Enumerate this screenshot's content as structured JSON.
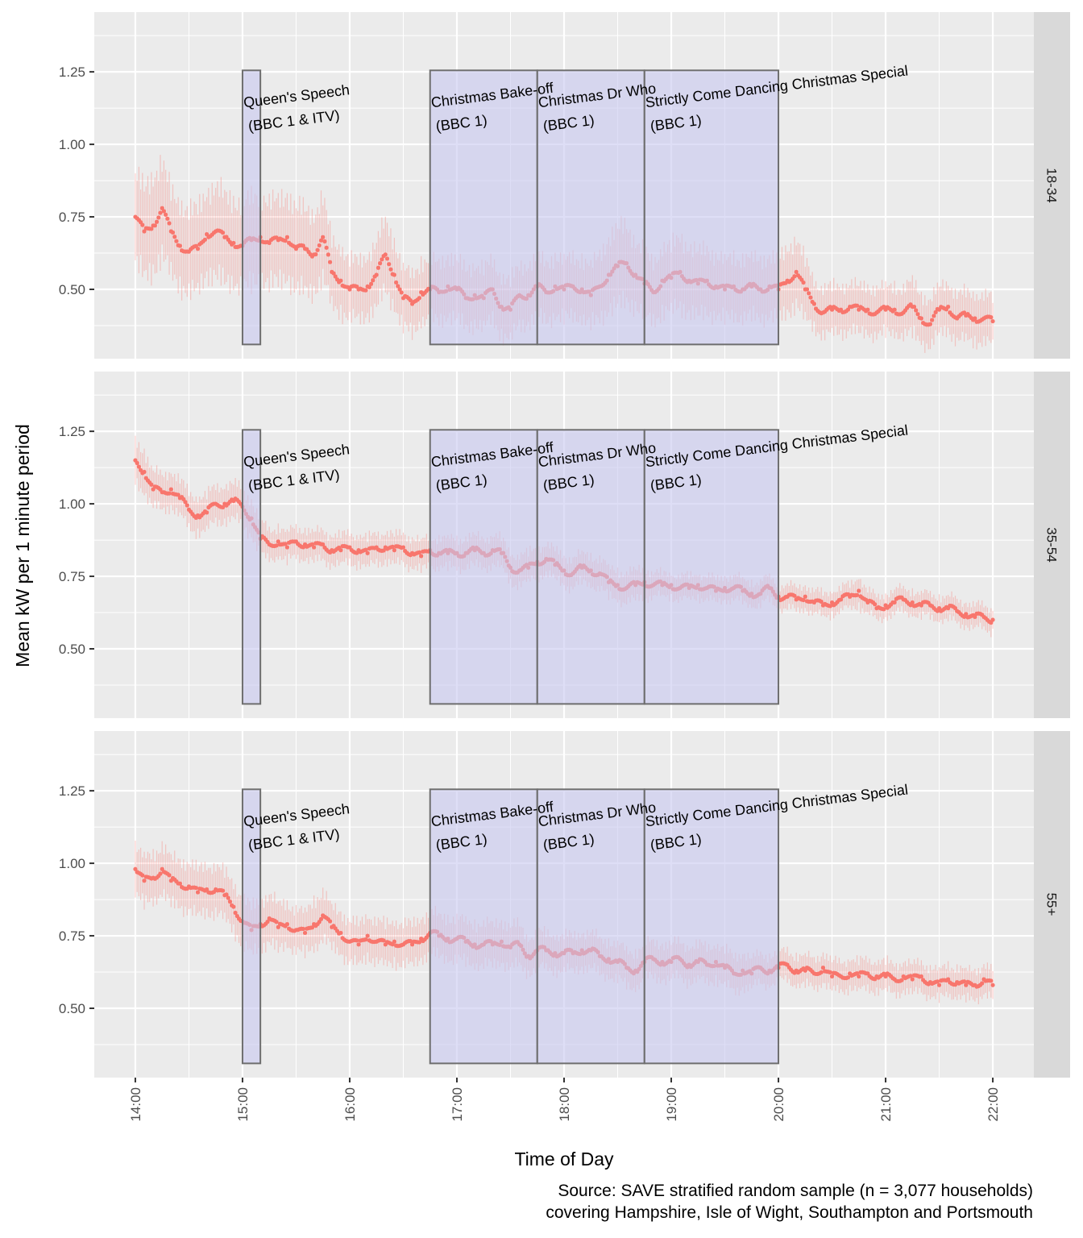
{
  "chart_data": {
    "type": "scatter",
    "subtype": "faceted point + errorbar time series",
    "title": "",
    "xlabel": "Time of Day",
    "ylabel": "Mean kW per 1 minute period",
    "caption_lines": [
      "Source: SAVE stratified random sample (n = 3,077 households)",
      "covering Hampshire, Isle of Wight, Southampton and Portsmouth"
    ],
    "x_unit": "hours",
    "xlim": [
      13.617,
      22.383
    ],
    "ylim": [
      0.261,
      1.456
    ],
    "x_ticks": [
      {
        "value": 14,
        "label": "14:00"
      },
      {
        "value": 15,
        "label": "15:00"
      },
      {
        "value": 16,
        "label": "16:00"
      },
      {
        "value": 17,
        "label": "17:00"
      },
      {
        "value": 18,
        "label": "18:00"
      },
      {
        "value": 19,
        "label": "19:00"
      },
      {
        "value": 20,
        "label": "20:00"
      },
      {
        "value": 21,
        "label": "21:00"
      },
      {
        "value": 22,
        "label": "22:00"
      }
    ],
    "y_ticks": [
      {
        "value": 0.5,
        "label": "0.50"
      },
      {
        "value": 0.75,
        "label": "0.75"
      },
      {
        "value": 1.0,
        "label": "1.00"
      },
      {
        "value": 1.25,
        "label": "1.25"
      }
    ],
    "grid": true,
    "point_color": "#F8766D",
    "errorbar_color": "#F8766D",
    "highlight_fill": "#C8C8F0",
    "highlight_stroke": "#6e6e6e",
    "panel_background": "#EBEBEB",
    "strip_background": "#D9D9D9",
    "x_step_minutes": 5,
    "x_start": 14,
    "annotations": [
      {
        "name": "queens-speech",
        "xmin": 15.0,
        "xmax": 15.1667,
        "ymin": 0.31,
        "ymax": 1.255,
        "lines": [
          "Queen's Speech",
          "(BBC 1 & ITV)"
        ]
      },
      {
        "name": "christmas-bake-off",
        "xmin": 16.75,
        "xmax": 17.75,
        "ymin": 0.31,
        "ymax": 1.255,
        "lines": [
          "Christmas Bake-off",
          "(BBC 1)"
        ]
      },
      {
        "name": "christmas-dr-who",
        "xmin": 17.75,
        "xmax": 18.75,
        "ymin": 0.31,
        "ymax": 1.255,
        "lines": [
          "Christmas Dr Who",
          "(BBC 1)"
        ]
      },
      {
        "name": "strictly-come-dancing",
        "xmin": 18.75,
        "xmax": 20.0,
        "ymin": 0.31,
        "ymax": 1.255,
        "lines": [
          "Strictly Come Dancing Christmas Special",
          "(BBC 1)"
        ]
      }
    ],
    "facets": [
      {
        "label": "18-34",
        "values": [
          0.75,
          0.7,
          0.72,
          0.78,
          0.7,
          0.65,
          0.63,
          0.64,
          0.69,
          0.7,
          0.68,
          0.66,
          0.65,
          0.67,
          0.68,
          0.66,
          0.67,
          0.68,
          0.64,
          0.64,
          0.62,
          0.68,
          0.56,
          0.53,
          0.5,
          0.5,
          0.51,
          0.55,
          0.62,
          0.55,
          0.47,
          0.45,
          0.49,
          0.5,
          0.49,
          0.51,
          0.5,
          0.47,
          0.48,
          0.47,
          0.5,
          0.44,
          0.43,
          0.48,
          0.48,
          0.51,
          0.49,
          0.51,
          0.5,
          0.51,
          0.5,
          0.48,
          0.51,
          0.55,
          0.58,
          0.59,
          0.55,
          0.52,
          0.49,
          0.53,
          0.54,
          0.56,
          0.53,
          0.52,
          0.53,
          0.51,
          0.5,
          0.51,
          0.5,
          0.51,
          0.5,
          0.51,
          0.5,
          0.53,
          0.56,
          0.5,
          0.45,
          0.42,
          0.43,
          0.43,
          0.44,
          0.43,
          0.43,
          0.42,
          0.43,
          0.43,
          0.42,
          0.44,
          0.4,
          0.38,
          0.43,
          0.44,
          0.4,
          0.41,
          0.4,
          0.4,
          0.39
        ],
        "error_halfwidth": [
          0.15,
          0.15,
          0.16,
          0.16,
          0.14,
          0.14,
          0.14,
          0.14,
          0.14,
          0.15,
          0.15,
          0.14,
          0.14,
          0.15,
          0.14,
          0.14,
          0.14,
          0.14,
          0.14,
          0.14,
          0.13,
          0.14,
          0.11,
          0.11,
          0.1,
          0.1,
          0.1,
          0.11,
          0.12,
          0.11,
          0.1,
          0.1,
          0.1,
          0.1,
          0.1,
          0.1,
          0.1,
          0.1,
          0.1,
          0.1,
          0.1,
          0.1,
          0.1,
          0.1,
          0.1,
          0.1,
          0.1,
          0.1,
          0.1,
          0.1,
          0.1,
          0.1,
          0.11,
          0.12,
          0.13,
          0.13,
          0.11,
          0.11,
          0.1,
          0.11,
          0.11,
          0.12,
          0.11,
          0.11,
          0.11,
          0.1,
          0.1,
          0.1,
          0.1,
          0.1,
          0.1,
          0.1,
          0.1,
          0.11,
          0.11,
          0.1,
          0.08,
          0.08,
          0.08,
          0.08,
          0.08,
          0.08,
          0.08,
          0.08,
          0.08,
          0.08,
          0.08,
          0.09,
          0.08,
          0.08,
          0.08,
          0.08,
          0.08,
          0.08,
          0.08,
          0.08,
          0.08
        ]
      },
      {
        "label": "35-54",
        "values": [
          1.15,
          1.11,
          1.05,
          1.04,
          1.05,
          1.02,
          0.98,
          0.96,
          0.97,
          1.0,
          1.0,
          1.01,
          0.99,
          0.95,
          0.88,
          0.86,
          0.87,
          0.85,
          0.87,
          0.86,
          0.85,
          0.86,
          0.84,
          0.84,
          0.85,
          0.84,
          0.83,
          0.85,
          0.85,
          0.84,
          0.85,
          0.83,
          0.82,
          0.84,
          0.83,
          0.83,
          0.83,
          0.83,
          0.84,
          0.83,
          0.84,
          0.83,
          0.78,
          0.77,
          0.78,
          0.8,
          0.81,
          0.79,
          0.77,
          0.76,
          0.78,
          0.77,
          0.76,
          0.73,
          0.72,
          0.71,
          0.72,
          0.73,
          0.72,
          0.72,
          0.72,
          0.71,
          0.71,
          0.72,
          0.71,
          0.7,
          0.71,
          0.71,
          0.7,
          0.69,
          0.69,
          0.71,
          0.68,
          0.68,
          0.67,
          0.68,
          0.66,
          0.65,
          0.66,
          0.67,
          0.68,
          0.7,
          0.66,
          0.64,
          0.65,
          0.66,
          0.67,
          0.66,
          0.65,
          0.65,
          0.64,
          0.64,
          0.63,
          0.62,
          0.61,
          0.61,
          0.6
        ],
        "error_halfwidth": [
          0.07,
          0.07,
          0.06,
          0.06,
          0.06,
          0.06,
          0.06,
          0.06,
          0.06,
          0.06,
          0.06,
          0.06,
          0.06,
          0.06,
          0.06,
          0.05,
          0.05,
          0.05,
          0.05,
          0.05,
          0.05,
          0.05,
          0.05,
          0.05,
          0.05,
          0.05,
          0.05,
          0.05,
          0.05,
          0.05,
          0.05,
          0.05,
          0.05,
          0.05,
          0.05,
          0.05,
          0.05,
          0.05,
          0.05,
          0.05,
          0.05,
          0.05,
          0.05,
          0.05,
          0.05,
          0.05,
          0.05,
          0.05,
          0.05,
          0.05,
          0.05,
          0.05,
          0.05,
          0.05,
          0.05,
          0.05,
          0.05,
          0.05,
          0.04,
          0.04,
          0.04,
          0.04,
          0.04,
          0.04,
          0.04,
          0.04,
          0.04,
          0.04,
          0.04,
          0.04,
          0.04,
          0.04,
          0.04,
          0.04,
          0.04,
          0.04,
          0.04,
          0.04,
          0.04,
          0.04,
          0.04,
          0.05,
          0.04,
          0.04,
          0.04,
          0.04,
          0.04,
          0.04,
          0.04,
          0.04,
          0.04,
          0.04,
          0.04,
          0.04,
          0.04,
          0.04,
          0.04
        ]
      },
      {
        "label": "55+",
        "values": [
          0.98,
          0.94,
          0.95,
          0.98,
          0.94,
          0.93,
          0.92,
          0.9,
          0.91,
          0.91,
          0.89,
          0.85,
          0.8,
          0.77,
          0.79,
          0.81,
          0.78,
          0.79,
          0.77,
          0.76,
          0.79,
          0.82,
          0.78,
          0.76,
          0.73,
          0.72,
          0.75,
          0.73,
          0.72,
          0.73,
          0.72,
          0.72,
          0.74,
          0.76,
          0.75,
          0.74,
          0.74,
          0.73,
          0.72,
          0.72,
          0.72,
          0.73,
          0.71,
          0.72,
          0.68,
          0.7,
          0.7,
          0.69,
          0.69,
          0.69,
          0.7,
          0.7,
          0.68,
          0.67,
          0.66,
          0.64,
          0.63,
          0.66,
          0.67,
          0.66,
          0.66,
          0.67,
          0.65,
          0.66,
          0.65,
          0.66,
          0.64,
          0.62,
          0.63,
          0.62,
          0.64,
          0.63,
          0.64,
          0.65,
          0.63,
          0.63,
          0.62,
          0.64,
          0.61,
          0.61,
          0.62,
          0.61,
          0.62,
          0.61,
          0.61,
          0.6,
          0.61,
          0.6,
          0.61,
          0.59,
          0.58,
          0.6,
          0.59,
          0.58,
          0.58,
          0.6,
          0.58
        ],
        "error_halfwidth": [
          0.08,
          0.08,
          0.08,
          0.08,
          0.08,
          0.08,
          0.08,
          0.08,
          0.08,
          0.08,
          0.08,
          0.08,
          0.08,
          0.08,
          0.08,
          0.08,
          0.08,
          0.07,
          0.07,
          0.07,
          0.08,
          0.08,
          0.07,
          0.07,
          0.07,
          0.07,
          0.07,
          0.07,
          0.07,
          0.07,
          0.07,
          0.07,
          0.07,
          0.07,
          0.07,
          0.07,
          0.07,
          0.07,
          0.07,
          0.07,
          0.07,
          0.07,
          0.07,
          0.07,
          0.06,
          0.06,
          0.06,
          0.06,
          0.06,
          0.06,
          0.06,
          0.06,
          0.06,
          0.06,
          0.06,
          0.06,
          0.06,
          0.06,
          0.06,
          0.06,
          0.06,
          0.06,
          0.06,
          0.06,
          0.06,
          0.06,
          0.06,
          0.06,
          0.06,
          0.05,
          0.05,
          0.05,
          0.05,
          0.05,
          0.05,
          0.05,
          0.05,
          0.05,
          0.05,
          0.05,
          0.05,
          0.05,
          0.05,
          0.05,
          0.05,
          0.05,
          0.05,
          0.05,
          0.05,
          0.05,
          0.05,
          0.05,
          0.05,
          0.05,
          0.05,
          0.05,
          0.05
        ]
      }
    ]
  }
}
